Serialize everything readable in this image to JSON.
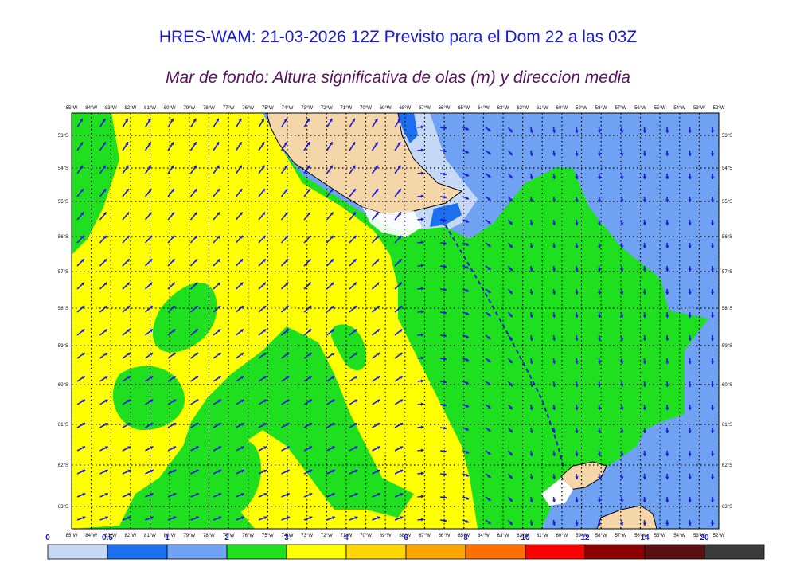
{
  "header": {
    "title": "HRES-WAM: 21-03-2026 12Z Previsto para el Dom 22 a las 03Z",
    "subtitle": "Mar de fondo: Altura significativa de olas (m) y direccion media"
  },
  "map": {
    "lon_labels": [
      "85°W",
      "84°W",
      "83°W",
      "82°W",
      "81°W",
      "80°W",
      "79°W",
      "78°W",
      "77°W",
      "76°W",
      "75°W",
      "74°W",
      "73°W",
      "72°W",
      "71°W",
      "70°W",
      "69°W",
      "68°W",
      "67°W",
      "66°W",
      "65°W",
      "64°W",
      "63°W",
      "62°W",
      "61°W",
      "60°W",
      "59°W",
      "58°W",
      "57°W",
      "56°W",
      "55°W",
      "54°W",
      "53°W",
      "52°W"
    ],
    "lat_labels": [
      "53°S",
      "54°S",
      "55°S",
      "56°S",
      "57°S",
      "58°S",
      "59°S",
      "60°S",
      "61°S",
      "62°S",
      "63°S"
    ],
    "colors": {
      "land": "#f5d6a8",
      "white": "#ffffff",
      "light_blue": "#c5d8f5",
      "medium_blue": "#6fa2f2",
      "blue": "#1c6fee",
      "green": "#1ee01e",
      "yellow": "#ffff00",
      "arrow": "#1a1ad6",
      "track": "#1a1ad6"
    }
  },
  "legend": {
    "labels": [
      "0",
      "0.5",
      "1",
      "2",
      "3",
      "4",
      "6",
      "8",
      "10",
      "12",
      "14",
      "20"
    ],
    "colors": [
      "#c5d8f5",
      "#1c6fee",
      "#6fa2f2",
      "#1ee01e",
      "#ffff00",
      "#ffd700",
      "#ffa500",
      "#ff7000",
      "#ff0000",
      "#8b0000",
      "#5a1010"
    ],
    "last_box_color": "#3a3a3a"
  }
}
